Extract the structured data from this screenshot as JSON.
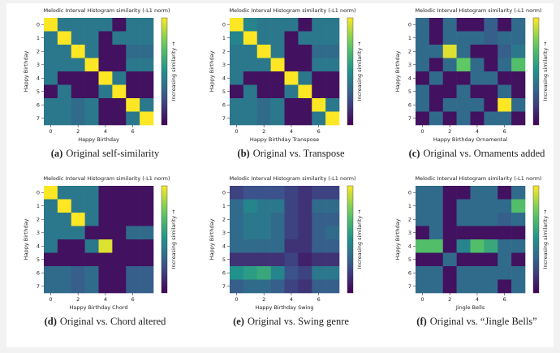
{
  "chart_data": [
    {
      "type": "heatmap",
      "title": "Melodic Interval Histogram similarity (-L1 norm)",
      "x_label": "Happy Birthday",
      "y_label": "Happy Birthday",
      "colorbar_label": "Increasing similarity →",
      "caption_label": "(a)",
      "caption": "Original self-similarity",
      "colormap": "viridis",
      "clim": [
        0,
        1
      ],
      "xlim": [
        -0.5,
        7.5
      ],
      "ylim": [
        -0.5,
        7.5
      ],
      "xticks": [
        0,
        2,
        4,
        6
      ],
      "yticks": [
        0,
        1,
        2,
        3,
        4,
        5,
        6,
        7
      ],
      "values": [
        [
          1,
          0.4,
          0.4,
          0.4,
          0.4,
          0.05,
          0.4,
          0.4
        ],
        [
          0.4,
          1,
          0.4,
          0.4,
          0.05,
          0.4,
          0.4,
          0.4
        ],
        [
          0.4,
          0.4,
          1,
          0.4,
          0.05,
          0.05,
          0.35,
          0.35
        ],
        [
          0.4,
          0.4,
          0.4,
          1,
          0.05,
          0.05,
          0.4,
          0.4
        ],
        [
          0.4,
          0.05,
          0.05,
          0.05,
          1,
          0.4,
          0.05,
          0.05
        ],
        [
          0.05,
          0.4,
          0.05,
          0.05,
          0.4,
          1,
          0.05,
          0.05
        ],
        [
          0.4,
          0.4,
          0.35,
          0.4,
          0.05,
          0.05,
          1,
          0.4
        ],
        [
          0.4,
          0.4,
          0.35,
          0.4,
          0.05,
          0.05,
          0.4,
          1
        ]
      ]
    },
    {
      "type": "heatmap",
      "title": "Melodic Interval Histogram similarity (-L1 norm)",
      "x_label": "Happy Birthday Transpose",
      "y_label": "Happy Birthday",
      "colorbar_label": "Increasing similarity →",
      "caption_label": "(b)",
      "caption": "Original vs. Transpose",
      "colormap": "viridis",
      "clim": [
        0,
        1
      ],
      "xlim": [
        -0.5,
        7.5
      ],
      "ylim": [
        -0.5,
        7.5
      ],
      "xticks": [
        0,
        2,
        4,
        6
      ],
      "yticks": [
        0,
        1,
        2,
        3,
        4,
        5,
        6,
        7
      ],
      "values": [
        [
          1,
          0.45,
          0.4,
          0.4,
          0.4,
          0.05,
          0.4,
          0.4
        ],
        [
          0.45,
          1,
          0.4,
          0.4,
          0.05,
          0.4,
          0.4,
          0.4
        ],
        [
          0.4,
          0.4,
          1,
          0.4,
          0.05,
          0.05,
          0.35,
          0.35
        ],
        [
          0.4,
          0.4,
          0.4,
          1,
          0.05,
          0.05,
          0.4,
          0.4
        ],
        [
          0.4,
          0.05,
          0.05,
          0.05,
          1,
          0.4,
          0.05,
          0.05
        ],
        [
          0.05,
          0.4,
          0.05,
          0.05,
          0.4,
          1,
          0.05,
          0.05
        ],
        [
          0.4,
          0.4,
          0.35,
          0.4,
          0.05,
          0.05,
          1,
          0.4
        ],
        [
          0.4,
          0.4,
          0.35,
          0.4,
          0.05,
          0.05,
          0.4,
          1
        ]
      ]
    },
    {
      "type": "heatmap",
      "title": "Melodic Interval Histogram similarity (-L1 norm)",
      "x_label": "Happy Birthday Ornamental",
      "y_label": "Happy Birthday",
      "colorbar_label": "Increasing similarity →",
      "caption_label": "(c)",
      "caption": "Original vs. Ornaments added",
      "colormap": "viridis",
      "clim": [
        0,
        1
      ],
      "xlim": [
        -0.5,
        7.5
      ],
      "ylim": [
        -0.5,
        7.5
      ],
      "xticks": [
        0,
        2,
        4,
        6
      ],
      "yticks": [
        0,
        1,
        2,
        3,
        4,
        5,
        6,
        7
      ],
      "values": [
        [
          0.35,
          0.05,
          0.35,
          0.05,
          0.05,
          0.3,
          0.05,
          0.35
        ],
        [
          0.35,
          0.05,
          0.35,
          0.35,
          0.35,
          0.3,
          0.35,
          0.35
        ],
        [
          0.35,
          0.35,
          0.95,
          0.35,
          0.05,
          0.05,
          0.3,
          0.4
        ],
        [
          0.35,
          0.05,
          0.35,
          0.75,
          0.35,
          0.05,
          0.35,
          0.7
        ],
        [
          0.05,
          0.35,
          0.05,
          0.05,
          0.35,
          0.35,
          0.05,
          0.05
        ],
        [
          0.35,
          0.05,
          0.05,
          0.35,
          0.05,
          0.05,
          0.35,
          0.05
        ],
        [
          0.35,
          0.05,
          0.35,
          0.35,
          0.35,
          0.05,
          1,
          0.35
        ],
        [
          0.05,
          0.35,
          0.05,
          0.35,
          0.05,
          0.35,
          0.35,
          0.05
        ]
      ]
    },
    {
      "type": "heatmap",
      "title": "Melodic Interval Histogram similarity (-L1 norm)",
      "x_label": "Happy Birthday Chord",
      "y_label": "Happy Birthday",
      "colorbar_label": "Increasing similarity →",
      "caption_label": "(d)",
      "caption": "Original vs. Chord altered",
      "colormap": "viridis",
      "clim": [
        0,
        1
      ],
      "xlim": [
        -0.5,
        7.5
      ],
      "ylim": [
        -0.5,
        7.5
      ],
      "xticks": [
        0,
        2,
        4,
        6
      ],
      "yticks": [
        0,
        1,
        2,
        3,
        4,
        5,
        6,
        7
      ],
      "values": [
        [
          1,
          0.4,
          0.4,
          0.4,
          0.05,
          0.05,
          0.05,
          0.05
        ],
        [
          0.4,
          1,
          0.4,
          0.4,
          0.05,
          0.05,
          0.05,
          0.05
        ],
        [
          0.4,
          0.4,
          1,
          0.4,
          0.05,
          0.05,
          0.05,
          0.05
        ],
        [
          0.4,
          0.4,
          0.4,
          0.05,
          0.05,
          0.05,
          0.35,
          0.35
        ],
        [
          0.4,
          0.05,
          0.05,
          0.4,
          0.95,
          0.05,
          0.05,
          0.05
        ],
        [
          0.05,
          0.05,
          0.05,
          0.05,
          0.05,
          0.05,
          0.05,
          0.05
        ],
        [
          0.35,
          0.35,
          0.3,
          0.35,
          0.05,
          0.05,
          0.3,
          0.3
        ],
        [
          0.35,
          0.35,
          0.3,
          0.35,
          0.05,
          0.05,
          0.3,
          0.3
        ]
      ]
    },
    {
      "type": "heatmap",
      "title": "Melodic Interval Histogram similarity (-L1 norm)",
      "x_label": "Happy Birthday Swing",
      "y_label": "Happy Birthday",
      "colorbar_label": "Increasing similarity →",
      "caption_label": "(e)",
      "caption": "Original vs. Swing genre",
      "colormap": "viridis",
      "clim": [
        0,
        1
      ],
      "xlim": [
        -0.5,
        7.5
      ],
      "ylim": [
        -0.5,
        7.5
      ],
      "xticks": [
        0,
        2,
        4,
        6
      ],
      "yticks": [
        0,
        1,
        2,
        3,
        4,
        5,
        6,
        7
      ],
      "values": [
        [
          0.2,
          0.25,
          0.25,
          0.25,
          0.2,
          0.15,
          0.2,
          0.2
        ],
        [
          0.35,
          0.45,
          0.4,
          0.4,
          0.2,
          0.15,
          0.35,
          0.35
        ],
        [
          0.35,
          0.4,
          0.4,
          0.35,
          0.2,
          0.15,
          0.3,
          0.3
        ],
        [
          0.35,
          0.4,
          0.4,
          0.35,
          0.2,
          0.15,
          0.3,
          0.35
        ],
        [
          0.35,
          0.35,
          0.35,
          0.35,
          0.15,
          0.15,
          0.3,
          0.3
        ],
        [
          0.15,
          0.15,
          0.15,
          0.15,
          0.2,
          0.1,
          0.15,
          0.15
        ],
        [
          0.5,
          0.55,
          0.6,
          0.45,
          0.25,
          0.2,
          0.4,
          0.4
        ],
        [
          0.3,
          0.35,
          0.35,
          0.3,
          0.2,
          0.15,
          0.3,
          0.3
        ]
      ]
    },
    {
      "type": "heatmap",
      "title": "Melodic Interval Histogram similarity (-L1 norm)",
      "x_label": "Jingle Bells",
      "y_label": "Happy Birthday",
      "colorbar_label": "Increasing similarity →",
      "caption_label": "(f)",
      "caption": "Original vs. “Jingle Bells”",
      "colormap": "viridis",
      "clim": [
        0,
        1
      ],
      "xlim": [
        -0.5,
        7.5
      ],
      "ylim": [
        -0.5,
        7.5
      ],
      "xticks": [
        0,
        2,
        4,
        6
      ],
      "yticks": [
        0,
        1,
        2,
        3,
        4,
        5,
        6,
        7
      ],
      "values": [
        [
          0.35,
          0.35,
          0.05,
          0.05,
          0.35,
          0.35,
          0.05,
          0.35
        ],
        [
          0.35,
          0.35,
          0.05,
          0.35,
          0.35,
          0.35,
          0.35,
          0.7
        ],
        [
          0.35,
          0.35,
          0.05,
          0.35,
          0.35,
          0.35,
          0.3,
          0.35
        ],
        [
          0.05,
          0.35,
          0.05,
          0.05,
          0.05,
          0.05,
          0.05,
          0.05
        ],
        [
          0.7,
          0.7,
          0.05,
          0.45,
          0.7,
          0.6,
          0.35,
          0.35
        ],
        [
          0.05,
          0.05,
          0.35,
          0.05,
          0.05,
          0.05,
          0.35,
          0.05
        ],
        [
          0.35,
          0.35,
          0.05,
          0.35,
          0.35,
          0.35,
          0.35,
          0.35
        ],
        [
          0.35,
          0.35,
          0.05,
          0.35,
          0.35,
          0.35,
          0.05,
          0.35
        ]
      ]
    }
  ]
}
